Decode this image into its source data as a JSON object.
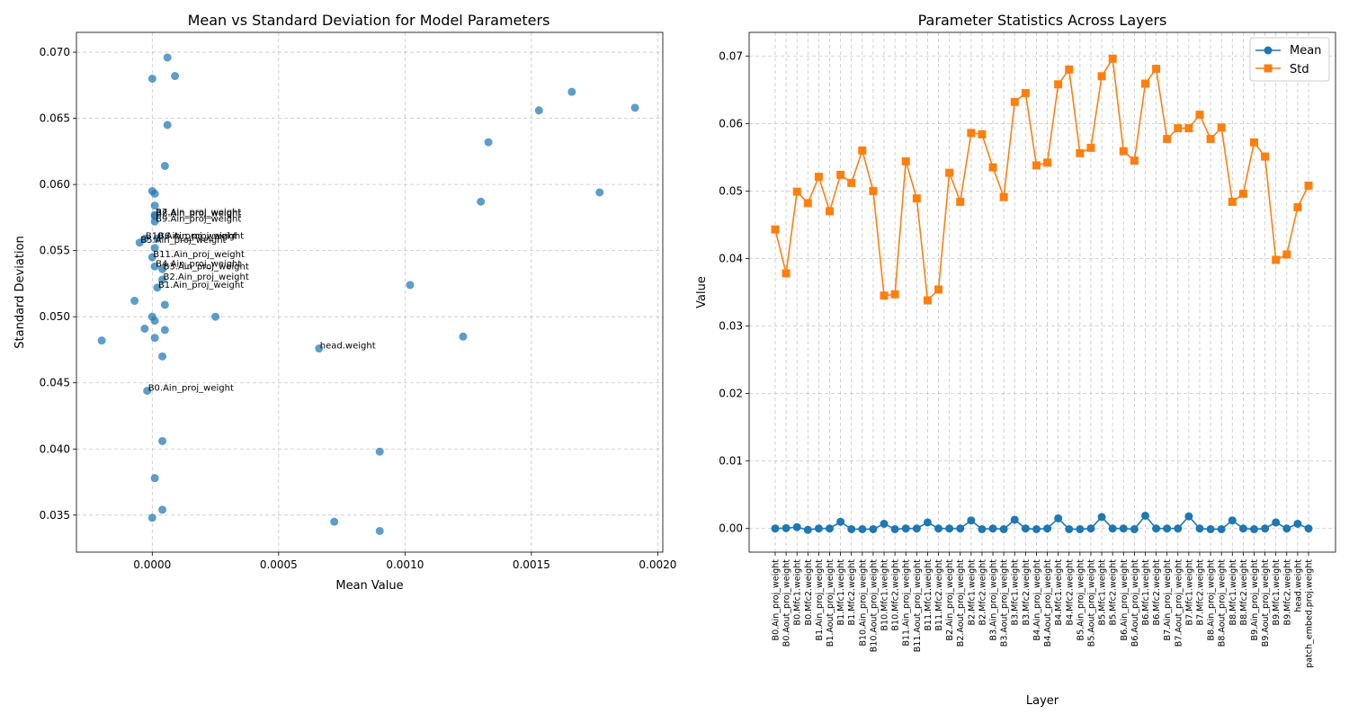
{
  "chart_data": [
    {
      "type": "scatter",
      "title": "Mean vs Standard Deviation for Model Parameters",
      "xlabel": "Mean Value",
      "ylabel": "Standard Deviation",
      "xlim": [
        -0.0003,
        0.00202
      ],
      "ylim": [
        0.0322,
        0.0715
      ],
      "xticks": [
        0.0,
        0.0005,
        0.001,
        0.0015,
        0.002
      ],
      "xtick_labels": [
        "0.0000",
        "0.0005",
        "0.0010",
        "0.0015",
        "0.0020"
      ],
      "yticks": [
        0.035,
        0.04,
        0.045,
        0.05,
        0.055,
        0.06,
        0.065,
        0.07
      ],
      "ytick_labels": [
        "0.035",
        "0.040",
        "0.045",
        "0.050",
        "0.055",
        "0.060",
        "0.065",
        "0.070"
      ],
      "grid": true,
      "color": "#1f77b4",
      "points": [
        {
          "x": -2e-05,
          "y": 0.0444,
          "label": "B0.Ain_proj_weight"
        },
        {
          "x": -5e-05,
          "y": 0.0556,
          "label": "B5.Ain_proj_weight"
        },
        {
          "x": 2e-05,
          "y": 0.0522,
          "label": "B1.Ain_proj_weight"
        },
        {
          "x": 4e-05,
          "y": 0.0528,
          "label": "B2.Ain_proj_weight"
        },
        {
          "x": 4e-05,
          "y": 0.0536,
          "label": "B3.Ain_proj_weight"
        },
        {
          "x": 1e-05,
          "y": 0.0538,
          "label": "B4.Ain_proj_weight"
        },
        {
          "x": 1e-05,
          "y": 0.0577,
          "label": "B7.Ain_proj_weight"
        },
        {
          "x": 1e-05,
          "y": 0.0576,
          "label": "B8.Ain_proj_weight"
        },
        {
          "x": 1e-05,
          "y": 0.0572,
          "label": "B9.Ain_proj_weight"
        },
        {
          "x": -3e-05,
          "y": 0.0559,
          "label": "B10.Ain_proj_weight"
        },
        {
          "x": 0.0,
          "y": 0.0545,
          "label": "B11.Ain_proj_weight"
        },
        {
          "x": 2e-05,
          "y": 0.0559,
          "label": "B6.Ain_proj_weight"
        },
        {
          "x": 0.00066,
          "y": 0.0476,
          "label": "head.weight"
        },
        {
          "x": 6e-05,
          "y": 0.0696,
          "label": ""
        },
        {
          "x": 0.0,
          "y": 0.068,
          "label": ""
        },
        {
          "x": 9e-05,
          "y": 0.0682,
          "label": ""
        },
        {
          "x": 6e-05,
          "y": 0.0645,
          "label": ""
        },
        {
          "x": 5e-05,
          "y": 0.0614,
          "label": ""
        },
        {
          "x": 0.0,
          "y": 0.0595,
          "label": ""
        },
        {
          "x": 1e-05,
          "y": 0.0593,
          "label": ""
        },
        {
          "x": 1e-05,
          "y": 0.0584,
          "label": ""
        },
        {
          "x": 1e-05,
          "y": 0.0552,
          "label": ""
        },
        {
          "x": -7e-05,
          "y": 0.0512,
          "label": ""
        },
        {
          "x": 5e-05,
          "y": 0.0509,
          "label": ""
        },
        {
          "x": 0.0,
          "y": 0.05,
          "label": ""
        },
        {
          "x": 1e-05,
          "y": 0.0497,
          "label": ""
        },
        {
          "x": -3e-05,
          "y": 0.0491,
          "label": ""
        },
        {
          "x": 5e-05,
          "y": 0.049,
          "label": ""
        },
        {
          "x": 1e-05,
          "y": 0.0484,
          "label": ""
        },
        {
          "x": -0.0002,
          "y": 0.0482,
          "label": ""
        },
        {
          "x": 4e-05,
          "y": 0.047,
          "label": ""
        },
        {
          "x": 0.00025,
          "y": 0.05,
          "label": ""
        },
        {
          "x": 4e-05,
          "y": 0.0406,
          "label": ""
        },
        {
          "x": 1e-05,
          "y": 0.0378,
          "label": ""
        },
        {
          "x": 4e-05,
          "y": 0.0354,
          "label": ""
        },
        {
          "x": 0.0,
          "y": 0.0348,
          "label": ""
        },
        {
          "x": 0.00072,
          "y": 0.0345,
          "label": ""
        },
        {
          "x": 0.0009,
          "y": 0.0338,
          "label": ""
        },
        {
          "x": 0.0009,
          "y": 0.0398,
          "label": ""
        },
        {
          "x": 0.00102,
          "y": 0.0524,
          "label": ""
        },
        {
          "x": 0.00123,
          "y": 0.0485,
          "label": ""
        },
        {
          "x": 0.0013,
          "y": 0.0587,
          "label": ""
        },
        {
          "x": 0.00133,
          "y": 0.0632,
          "label": ""
        },
        {
          "x": 0.00153,
          "y": 0.0656,
          "label": ""
        },
        {
          "x": 0.00166,
          "y": 0.067,
          "label": ""
        },
        {
          "x": 0.00177,
          "y": 0.0594,
          "label": ""
        },
        {
          "x": 0.00191,
          "y": 0.0658,
          "label": ""
        }
      ]
    },
    {
      "type": "line",
      "title": "Parameter Statistics Across Layers",
      "xlabel": "Layer",
      "ylabel": "Value",
      "ylim": [
        -0.0035,
        0.0735
      ],
      "yticks": [
        0.0,
        0.01,
        0.02,
        0.03,
        0.04,
        0.05,
        0.06,
        0.07
      ],
      "ytick_labels": [
        "0.00",
        "0.01",
        "0.02",
        "0.03",
        "0.04",
        "0.05",
        "0.06",
        "0.07"
      ],
      "grid": true,
      "legend": "top-right",
      "categories": [
        "B0.Ain_proj_weight",
        "B0.Aout_proj_weight",
        "B0.Mfc1.weight",
        "B0.Mfc2.weight",
        "B1.Ain_proj_weight",
        "B1.Aout_proj_weight",
        "B1.Mfc1.weight",
        "B1.Mfc2.weight",
        "B10.Ain_proj_weight",
        "B10.Aout_proj_weight",
        "B10.Mfc1.weight",
        "B10.Mfc2.weight",
        "B11.Ain_proj_weight",
        "B11.Aout_proj_weight",
        "B11.Mfc1.weight",
        "B11.Mfc2.weight",
        "B2.Ain_proj_weight",
        "B2.Aout_proj_weight",
        "B2.Mfc1.weight",
        "B2.Mfc2.weight",
        "B3.Ain_proj_weight",
        "B3.Aout_proj_weight",
        "B3.Mfc1.weight",
        "B3.Mfc2.weight",
        "B4.Ain_proj_weight",
        "B4.Aout_proj_weight",
        "B4.Mfc1.weight",
        "B4.Mfc2.weight",
        "B5.Ain_proj_weight",
        "B5.Aout_proj_weight",
        "B5.Mfc1.weight",
        "B5.Mfc2.weight",
        "B6.Ain_proj_weight",
        "B6.Aout_proj_weight",
        "B6.Mfc1.weight",
        "B6.Mfc2.weight",
        "B7.Ain_proj_weight",
        "B7.Aout_proj_weight",
        "B7.Mfc1.weight",
        "B7.Mfc2.weight",
        "B8.Ain_proj_weight",
        "B8.Aout_proj_weight",
        "B8.Mfc1.weight",
        "B8.Mfc2.weight",
        "B9.Ain_proj_weight",
        "B9.Aout_proj_weight",
        "B9.Mfc1.weight",
        "B9.Mfc2.weight",
        "head.weight",
        "patch_embed.proj.weight"
      ],
      "series": [
        {
          "name": "Mean",
          "color": "#1f77b4",
          "marker": "circle",
          "values": [
            0.0,
            5e-05,
            0.0002,
            -0.0002,
            0.0,
            0.0,
            0.001,
            -0.0001,
            -0.0001,
            -0.0001,
            0.0007,
            -0.0001,
            0.0,
            0.0,
            0.0009,
            0.0,
            0.0,
            0.0,
            0.0012,
            -0.0001,
            0.0,
            -0.0001,
            0.0013,
            0.0,
            -0.0001,
            0.0,
            0.0015,
            -0.0001,
            -0.0001,
            0.0,
            0.0017,
            0.0,
            0.0,
            -0.0001,
            0.0019,
            0.0,
            0.0,
            0.0,
            0.0018,
            0.0,
            -0.0001,
            -0.0001,
            0.0012,
            0.0,
            -0.0001,
            0.0,
            0.0009,
            0.0,
            0.0007,
            0.0
          ]
        },
        {
          "name": "Std",
          "color": "#ff7f0e",
          "marker": "square",
          "values": [
            0.0443,
            0.0378,
            0.0499,
            0.0482,
            0.0521,
            0.047,
            0.0524,
            0.0512,
            0.056,
            0.05,
            0.0345,
            0.0347,
            0.0544,
            0.0489,
            0.0338,
            0.0354,
            0.0527,
            0.0484,
            0.0586,
            0.0584,
            0.0535,
            0.0491,
            0.0632,
            0.0645,
            0.0538,
            0.0542,
            0.0658,
            0.068,
            0.0556,
            0.0564,
            0.067,
            0.0696,
            0.0559,
            0.0545,
            0.0659,
            0.0681,
            0.0577,
            0.0593,
            0.0593,
            0.0613,
            0.0577,
            0.0594,
            0.0484,
            0.0496,
            0.0572,
            0.0551,
            0.0398,
            0.0406,
            0.0476,
            0.0508
          ]
        }
      ]
    }
  ]
}
